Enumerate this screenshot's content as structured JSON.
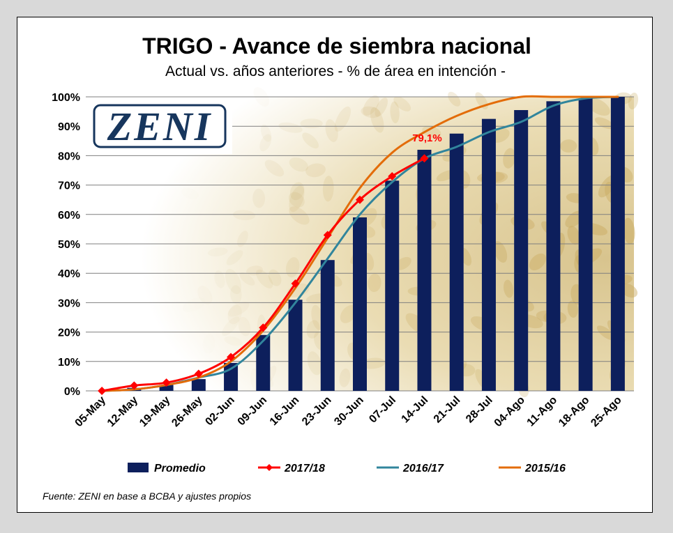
{
  "chart_data": {
    "type": "bar",
    "title": "TRIGO - Avance de siembra nacional",
    "subtitle": "Actual vs. años anteriores - % de área en intención -",
    "categories": [
      "05-May",
      "12-May",
      "19-May",
      "26-May",
      "02-Jun",
      "09-Jun",
      "16-Jun",
      "23-Jun",
      "30-Jun",
      "07-Jul",
      "14-Jul",
      "21-Jul",
      "28-Jul",
      "04-Ago",
      "11-Ago",
      "18-Ago",
      "25-Ago"
    ],
    "ylim": [
      0,
      100
    ],
    "yticks": [
      0,
      10,
      20,
      30,
      40,
      50,
      60,
      70,
      80,
      90,
      100
    ],
    "ytick_labels": [
      "0%",
      "10%",
      "20%",
      "30%",
      "40%",
      "50%",
      "60%",
      "70%",
      "80%",
      "90%",
      "100%"
    ],
    "series": [
      {
        "name": "Promedio",
        "type": "bar",
        "color": "#0d1f5c",
        "values": [
          0,
          1,
          2,
          4,
          9.5,
          19,
          31,
          44.5,
          59,
          71.5,
          82,
          87.5,
          92.5,
          95.5,
          98.5,
          99.5,
          100
        ]
      },
      {
        "name": "2017/18",
        "type": "line",
        "color": "#ff0000",
        "marker": "diamond",
        "values": [
          0,
          1.8,
          2.8,
          5.8,
          11.5,
          21.5,
          36.5,
          53,
          65,
          73,
          79.1,
          null,
          null,
          null,
          null,
          null,
          null
        ]
      },
      {
        "name": "2016/17",
        "type": "line",
        "color": "#31859c",
        "values": [
          0,
          0.5,
          2,
          4.5,
          7.5,
          17,
          30,
          45,
          60,
          71,
          79,
          83,
          88,
          91.5,
          97,
          99.5,
          100
        ]
      },
      {
        "name": "2015/16",
        "type": "line",
        "color": "#e36c09",
        "values": [
          0,
          0.5,
          2,
          4.5,
          10,
          20.5,
          35,
          52,
          69,
          81,
          88,
          93.5,
          97.5,
          100,
          100,
          100,
          100
        ]
      }
    ],
    "annotations": [
      {
        "text": "79,1%",
        "x": "14-Jul",
        "y": 79.1,
        "color": "#ff0000"
      }
    ],
    "grid": true,
    "legend_placement": "bottom"
  },
  "logo": {
    "text": "ZENI"
  },
  "source": "Fuente: ZENI en base a BCBA y ajustes propios",
  "colors": {
    "background": "#d9d9d9",
    "panel": "#ffffff",
    "grid": "#7f7f7f",
    "wheat_tint": "#e9dcb6"
  }
}
